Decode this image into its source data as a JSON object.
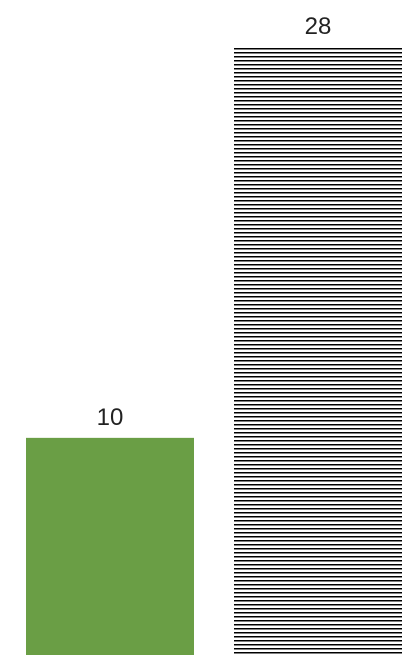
{
  "chart_data": {
    "type": "bar",
    "categories": [
      "",
      ""
    ],
    "values": [
      10,
      28
    ],
    "data_labels": [
      "10",
      "28"
    ],
    "ylim": [
      0,
      28
    ],
    "grid": false,
    "legend": "none",
    "bar_styles": [
      {
        "fill": "solid",
        "color": "#6a9e45"
      },
      {
        "fill": "horizontal-stripes",
        "color": "#000000"
      }
    ]
  }
}
